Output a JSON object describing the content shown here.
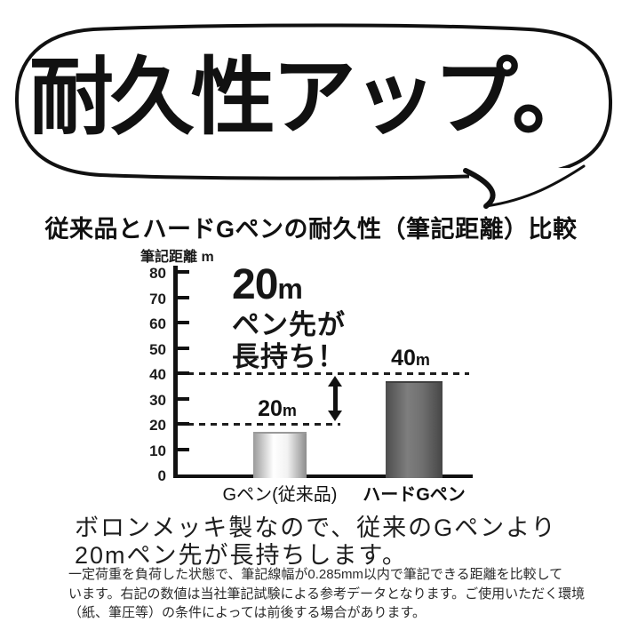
{
  "headline": "耐久性アップ。",
  "chart_data": {
    "type": "bar",
    "title": "従来品とハードGペンの耐久性（筆記距離）比較",
    "ylabel": "筆記距離 m",
    "ylim": [
      0,
      80
    ],
    "yticks": [
      80,
      70,
      60,
      50,
      40,
      30,
      20,
      10,
      0
    ],
    "categories": [
      "Gペン(従来品)",
      "ハードGペン"
    ],
    "series": [
      {
        "name": "筆記距離",
        "values": [
          20,
          40
        ]
      }
    ],
    "value_labels": [
      {
        "num": "20",
        "unit": "m"
      },
      {
        "num": "40",
        "unit": "m"
      }
    ],
    "dashed_levels": [
      20,
      40
    ],
    "grid": false,
    "legend": "none",
    "annotation": {
      "big": "20",
      "unit": "m",
      "line2": "ペン先が",
      "line3": "長持ち！"
    }
  },
  "body_text": {
    "line1": "ボロンメッキ製なので、従来のGペンより",
    "line2": "20mペン先が長持ちします。"
  },
  "footnote_lines": [
    "一定荷重を負荷した状態で、筆記線幅が0.285mm以内で筆記できる距離を比較して",
    "います。右記の数値は当社筆記試験による参考データとなります。ご使用いただく環境",
    "（紙、筆圧等）の条件によっては前後する場合があります。"
  ],
  "colors": {
    "ink": "#111111",
    "bar_conventional": [
      "#9a9a9a",
      "#ffffff",
      "#f2f2f2",
      "#8c8c8c"
    ],
    "bar_hard": [
      "#4d4d4d",
      "#7e7e7e",
      "#707070",
      "#464646"
    ]
  }
}
